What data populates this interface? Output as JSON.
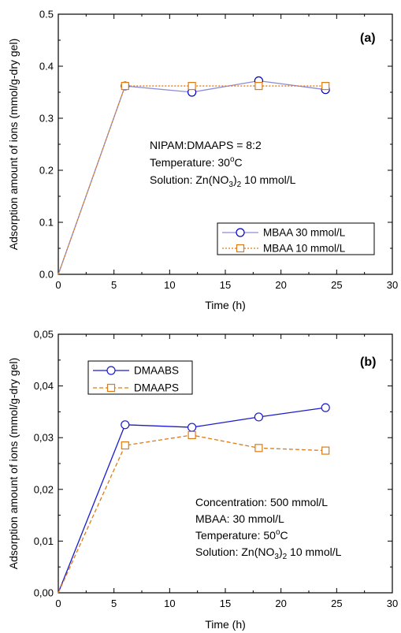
{
  "chart_data": [
    {
      "type": "line",
      "panel_label": "(a)",
      "xlabel": "Time (h)",
      "ylabel": "Adsorption amount of ions (mmol/g-dry gel)",
      "xlim": [
        0,
        30
      ],
      "ylim": [
        0,
        0.5
      ],
      "x_ticks": [
        "0",
        "5",
        "10",
        "15",
        "20",
        "25",
        "30"
      ],
      "y_ticks": [
        "0.0",
        "0.1",
        "0.2",
        "0.3",
        "0.4",
        "0.5"
      ],
      "legend_position": "bottom-right",
      "annotations": [
        {
          "text": "NIPAM:DMAAPS = 8:2"
        },
        {
          "text": "Temperature: 30",
          "sup": "o",
          "tail": "C"
        },
        {
          "text": "Solution: Zn(NO",
          "sub": "3",
          "mid": ")",
          "sub2": "2",
          "tail": " 10 mmol/L"
        }
      ],
      "series": [
        {
          "name": "MBAA 30 mmol/L",
          "color": "#0000cc",
          "line_color": "#8c8cd9",
          "dash": "solid",
          "marker": "circle",
          "x": [
            0,
            6,
            12,
            18,
            24
          ],
          "y": [
            0.0,
            0.362,
            0.35,
            0.372,
            0.355
          ]
        },
        {
          "name": "MBAA 10 mmol/L",
          "color": "#e07a10",
          "line_color": "#e07a10",
          "dash": "dotted",
          "marker": "square",
          "x": [
            0,
            6,
            12,
            18,
            24
          ],
          "y": [
            0.0,
            0.362,
            0.362,
            0.362,
            0.362
          ]
        }
      ]
    },
    {
      "type": "line",
      "panel_label": "(b)",
      "xlabel": "Time (h)",
      "ylabel": "Adsorption amount of ions (mmol/g-dry gel)",
      "xlim": [
        0,
        30
      ],
      "ylim": [
        0,
        0.05
      ],
      "x_ticks": [
        "0",
        "5",
        "10",
        "15",
        "20",
        "25",
        "30"
      ],
      "y_ticks": [
        "0,00",
        "0,01",
        "0,02",
        "0,03",
        "0,04",
        "0,05"
      ],
      "legend_position": "top-left",
      "annotations": [
        {
          "text": "Concentration: 500 mmol/L"
        },
        {
          "text": "MBAA: 30 mmol/L"
        },
        {
          "text": "Temperature: 50",
          "sup": "o",
          "tail": "C"
        },
        {
          "text": "Solution: Zn(NO",
          "sub": "3",
          "mid": ")",
          "sub2": "2",
          "tail": " 10 mmol/L"
        }
      ],
      "series": [
        {
          "name": "DMAABS",
          "color": "#1a1acc",
          "line_color": "#1a1acc",
          "dash": "solid",
          "marker": "circle",
          "x": [
            0,
            6,
            12,
            18,
            24
          ],
          "y": [
            0.0,
            0.0325,
            0.032,
            0.034,
            0.0358
          ]
        },
        {
          "name": "DMAAPS",
          "color": "#e07a10",
          "line_color": "#e07a10",
          "dash": "dashed",
          "marker": "square",
          "x": [
            0,
            6,
            12,
            18,
            24
          ],
          "y": [
            0.0,
            0.0285,
            0.0305,
            0.028,
            0.0275
          ]
        }
      ]
    }
  ]
}
